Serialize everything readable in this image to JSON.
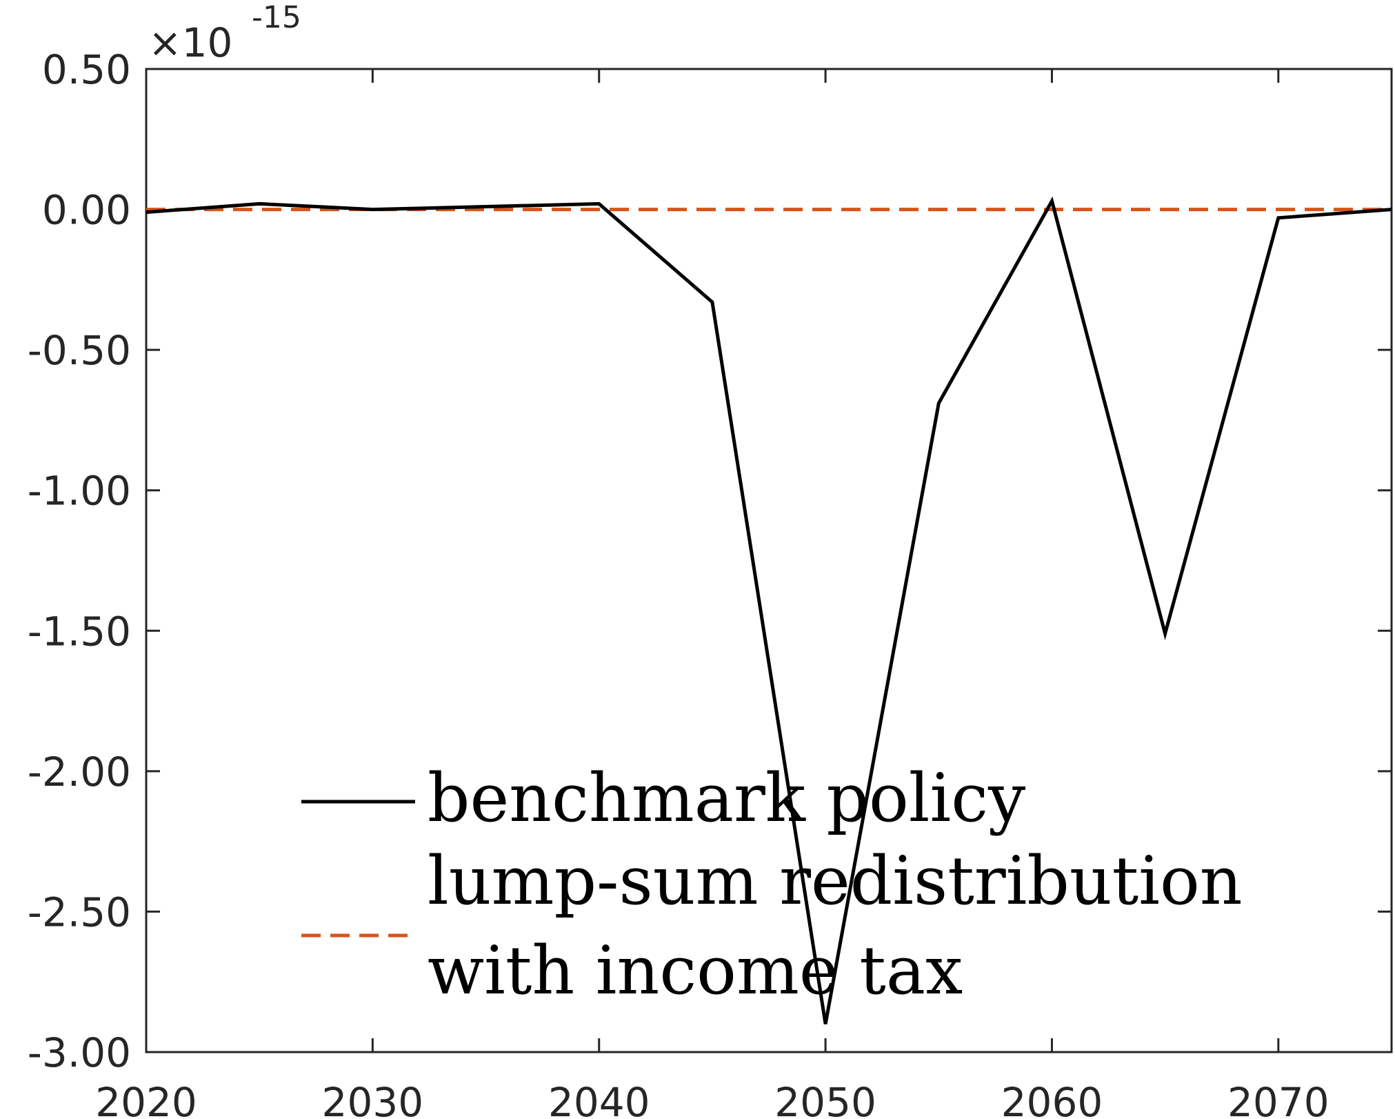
{
  "chart_data": {
    "type": "line",
    "x": [
      2020,
      2025,
      2030,
      2035,
      2040,
      2045,
      2050,
      2055,
      2060,
      2065,
      2070,
      2075
    ],
    "series": [
      {
        "name": "benchmark policy",
        "values": [
          -0.01,
          0.02,
          0.0,
          0.01,
          0.02,
          -0.33,
          -2.9,
          -0.69,
          0.03,
          -1.51,
          -0.03,
          0.0
        ],
        "color": "#000000",
        "style": "solid"
      },
      {
        "name": "lump-sum redistribution with income tax",
        "values": [
          0.0,
          0.0,
          0.0,
          0.0,
          0.0,
          0.0,
          0.0,
          0.0,
          0.0,
          0.0,
          0.0,
          0.0
        ],
        "color": "#D95319",
        "style": "dashed"
      }
    ],
    "xlim": [
      2020,
      2075
    ],
    "ylim": [
      -3.0,
      0.5
    ],
    "xticks": [
      "2020",
      "2030",
      "2040",
      "2050",
      "2060",
      "2070"
    ],
    "yticks": [
      "0.50",
      "0.00",
      "-0.50",
      "-1.00",
      "-1.50",
      "-2.00",
      "-2.50",
      "-3.00"
    ],
    "y_exponent": {
      "base": "×10",
      "power": "-15"
    },
    "legend": {
      "placement": "bottom-left",
      "lines": [
        [
          "benchmark policy"
        ],
        [
          "lump-sum redistribution",
          "with income tax"
        ]
      ]
    },
    "grid": false
  }
}
